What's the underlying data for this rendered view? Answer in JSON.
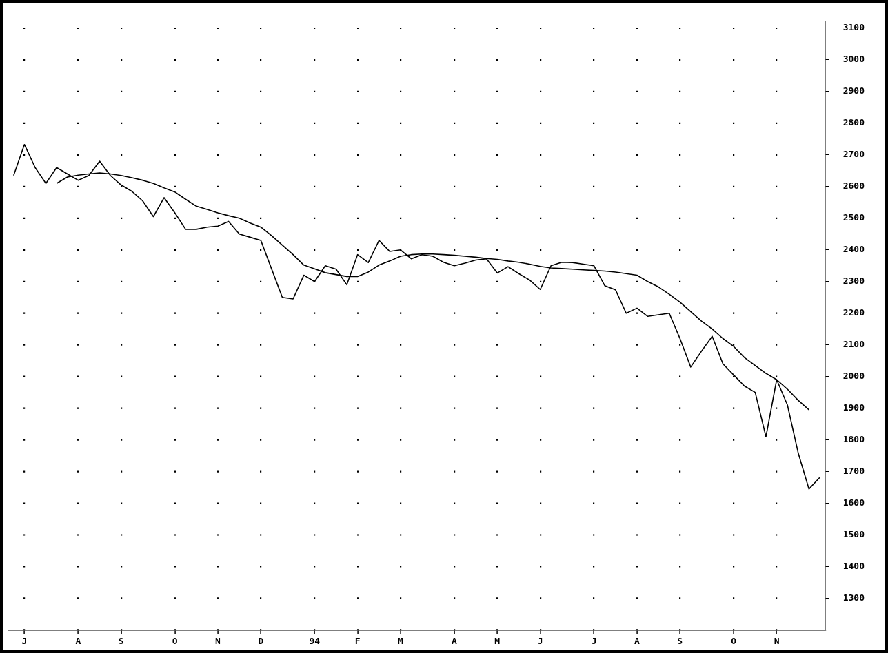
{
  "chart_data": {
    "type": "line",
    "ylim": [
      1200,
      3120
    ],
    "categories": [
      null,
      "J",
      null,
      null,
      null,
      null,
      "A",
      null,
      null,
      null,
      "S",
      null,
      null,
      null,
      null,
      "O",
      null,
      null,
      null,
      "N",
      null,
      null,
      null,
      "D",
      null,
      null,
      null,
      null,
      "94",
      null,
      null,
      null,
      "F",
      null,
      null,
      null,
      "M",
      null,
      null,
      null,
      null,
      "A",
      null,
      null,
      null,
      "M",
      null,
      null,
      null,
      "J",
      null,
      null,
      null,
      null,
      "J",
      null,
      null,
      null,
      "A",
      null,
      null,
      null,
      "S",
      null,
      null,
      null,
      null,
      "O",
      null,
      null,
      null,
      "N",
      null,
      null,
      null,
      null
    ],
    "yticks": [
      1300,
      1400,
      1500,
      1600,
      1700,
      1800,
      1900,
      2000,
      2100,
      2200,
      2300,
      2400,
      2500,
      2600,
      2700,
      2800,
      2900,
      3000,
      3100
    ],
    "grid": true,
    "marker": "none",
    "line_style": "solid",
    "series": [
      {
        "color": "#000000",
        "values": [
          2635,
          2733,
          2660,
          2610,
          2660,
          2640,
          2620,
          2635,
          2680,
          2635,
          2605,
          2585,
          2555,
          2505,
          2565,
          2517,
          2465,
          2465,
          2472,
          2475,
          2490,
          2450,
          2440,
          2430,
          2340,
          2250,
          2245,
          2320,
          2300,
          2350,
          2339,
          2290,
          2385,
          2360,
          2430,
          2395,
          2400,
          2372,
          2385,
          2380,
          2361,
          2350,
          2358,
          2368,
          2372,
          2327,
          2347,
          2325,
          2305,
          2275,
          2350,
          2361,
          2360,
          2355,
          2350,
          2287,
          2274,
          2200,
          2216,
          2190,
          2195,
          2200,
          2120,
          2030,
          2080,
          2127,
          2040,
          2005,
          1970,
          1950,
          1810,
          1990,
          1910,
          1759,
          1645,
          1681
        ]
      },
      {
        "color": "#000000",
        "values": [
          null,
          null,
          null,
          null,
          2610,
          2630,
          2636,
          2640,
          2643,
          2640,
          2635,
          2628,
          2620,
          2610,
          2596,
          2583,
          2560,
          2538,
          2528,
          2517,
          2508,
          2500,
          2485,
          2472,
          2445,
          2415,
          2385,
          2352,
          2340,
          2328,
          2322,
          2316,
          2316,
          2330,
          2352,
          2365,
          2380,
          2385,
          2387,
          2387,
          2385,
          2383,
          2380,
          2377,
          2373,
          2370,
          2365,
          2361,
          2355,
          2348,
          2343,
          2341,
          2339,
          2337,
          2335,
          2333,
          2330,
          2325,
          2320,
          2300,
          2283,
          2260,
          2235,
          2205,
          2175,
          2150,
          2120,
          2095,
          2060,
          2035,
          2010,
          1990,
          1960,
          1925,
          1895,
          null
        ]
      }
    ]
  }
}
